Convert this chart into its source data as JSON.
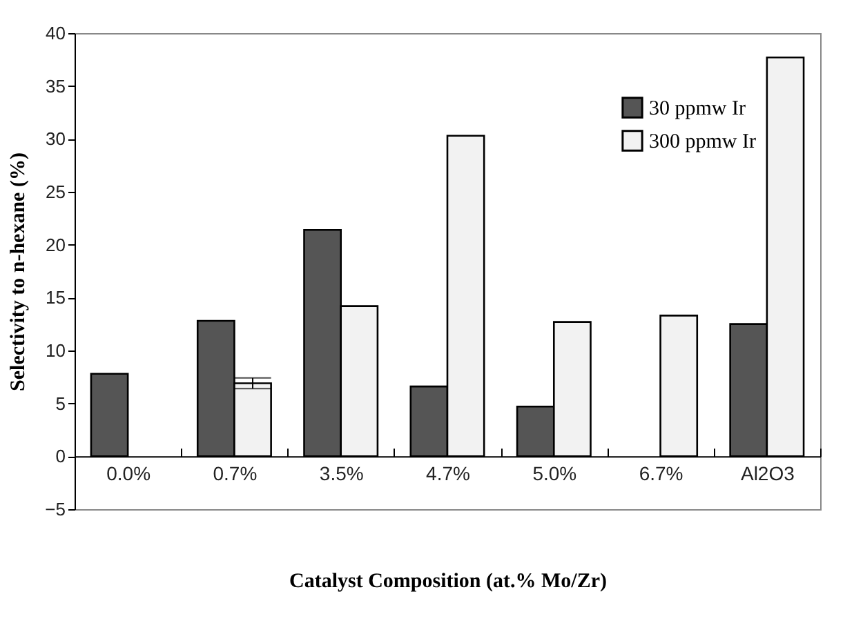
{
  "chart_data": {
    "type": "bar",
    "xlabel": "Catalyst Composition (at.%  Mo/Zr)",
    "ylabel": "Selectivity to n-hexane (%)",
    "categories": [
      "0.0%",
      "0.7%",
      "3.5%",
      "4.7%",
      "5.0%",
      "6.7%",
      "Al2O3"
    ],
    "series": [
      {
        "name": "30 ppmw Ir",
        "color": "#555555",
        "values": [
          7.8,
          12.8,
          21.4,
          6.6,
          4.7,
          0,
          12.5
        ]
      },
      {
        "name": "300 ppmw Ir",
        "color": "#f2f2f2",
        "values": [
          0,
          6.9,
          14.2,
          30.3,
          12.7,
          13.3,
          37.7
        ],
        "errors": [
          null,
          0.5,
          null,
          null,
          null,
          null,
          null
        ]
      }
    ],
    "ylim": [
      -5,
      40
    ],
    "yticks": [
      -5,
      0,
      5,
      10,
      15,
      20,
      25,
      30,
      35,
      40
    ],
    "grid": false,
    "legend": "top right"
  }
}
